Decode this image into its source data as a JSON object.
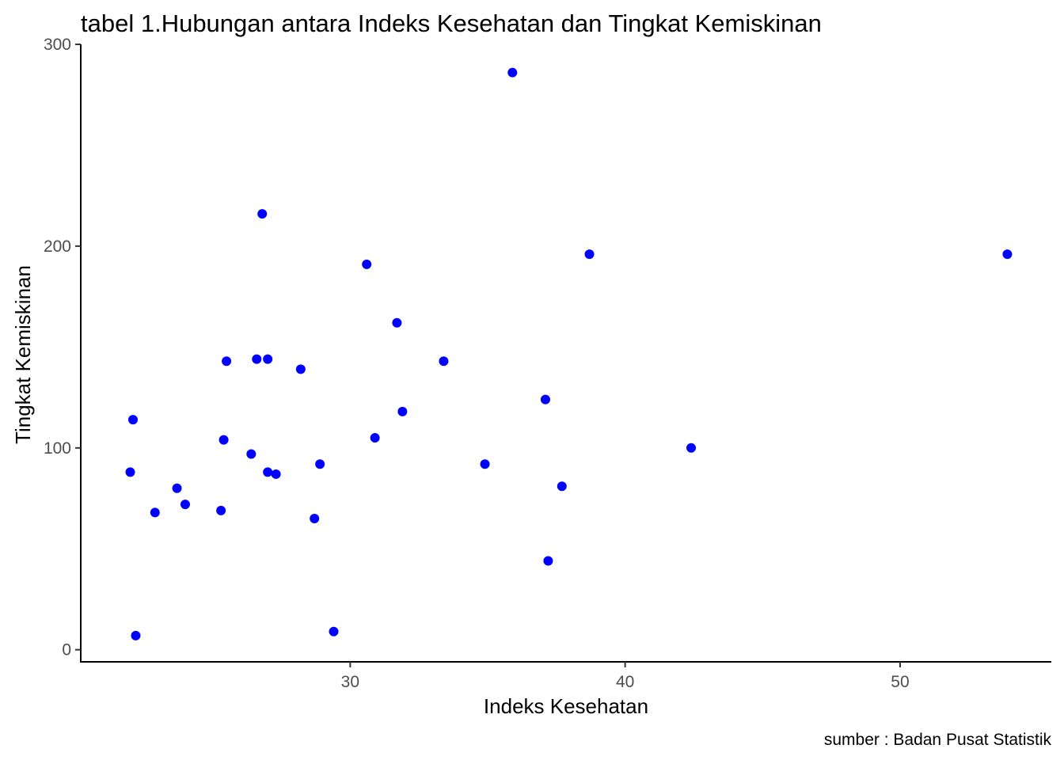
{
  "chart_data": {
    "type": "scatter",
    "title": "tabel 1.Hubungan antara Indeks Kesehatan dan Tingkat Kemiskinan",
    "xlabel": "Indeks Kesehatan",
    "ylabel": "Tingkat Kemiskinan",
    "caption": "sumber : Badan Pusat Statistik",
    "xlim": [
      20.2,
      55.5
    ],
    "ylim": [
      -6,
      300
    ],
    "xticks": [
      30,
      40,
      50
    ],
    "yticks": [
      0,
      100,
      200,
      300
    ],
    "xtick_labels": [
      "30",
      "40",
      "50"
    ],
    "ytick_labels": [
      "0",
      "100",
      "200",
      "300"
    ],
    "grid": false,
    "point_color": "#0000ff",
    "points": [
      {
        "x": 22.0,
        "y": 88
      },
      {
        "x": 22.1,
        "y": 114
      },
      {
        "x": 22.2,
        "y": 7
      },
      {
        "x": 22.9,
        "y": 68
      },
      {
        "x": 23.7,
        "y": 80
      },
      {
        "x": 24.0,
        "y": 72
      },
      {
        "x": 25.3,
        "y": 69
      },
      {
        "x": 25.4,
        "y": 104
      },
      {
        "x": 25.5,
        "y": 143
      },
      {
        "x": 26.4,
        "y": 97
      },
      {
        "x": 26.6,
        "y": 144
      },
      {
        "x": 26.8,
        "y": 216
      },
      {
        "x": 27.0,
        "y": 88
      },
      {
        "x": 27.0,
        "y": 144
      },
      {
        "x": 27.3,
        "y": 87
      },
      {
        "x": 28.2,
        "y": 139
      },
      {
        "x": 28.7,
        "y": 65
      },
      {
        "x": 28.9,
        "y": 92
      },
      {
        "x": 29.4,
        "y": 9
      },
      {
        "x": 30.6,
        "y": 191
      },
      {
        "x": 30.9,
        "y": 105
      },
      {
        "x": 31.7,
        "y": 162
      },
      {
        "x": 31.9,
        "y": 118
      },
      {
        "x": 33.4,
        "y": 143
      },
      {
        "x": 34.9,
        "y": 92
      },
      {
        "x": 35.9,
        "y": 286
      },
      {
        "x": 37.1,
        "y": 124
      },
      {
        "x": 37.2,
        "y": 44
      },
      {
        "x": 37.7,
        "y": 81
      },
      {
        "x": 38.7,
        "y": 196
      },
      {
        "x": 42.4,
        "y": 100
      },
      {
        "x": 53.9,
        "y": 196
      }
    ]
  }
}
